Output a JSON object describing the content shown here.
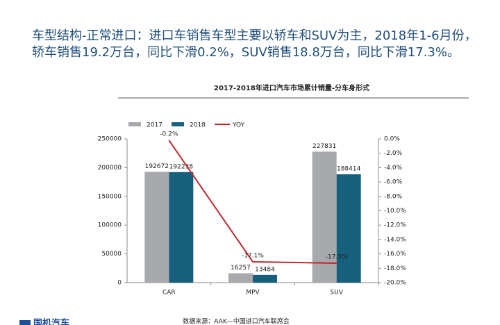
{
  "header": {
    "lines": [
      "车型结构-正常进口：进口车销售车型主要以轿车和SUV为主，2018年1-6月份，",
      "轿车销售19.2万台，同比下滑0.2%，SUV销售18.8万台，同比下滑17.3%。"
    ]
  },
  "chart_data": {
    "type": "bar",
    "title": "2017-2018年进口汽车市场累计销量-分车身形式",
    "categories": [
      "CAR",
      "MPV",
      "SUV"
    ],
    "series": [
      {
        "name": "2017",
        "color": "#a7a9ac",
        "values": [
          192672,
          16257,
          227831
        ]
      },
      {
        "name": "2018",
        "color": "#17607d",
        "values": [
          192238,
          13484,
          188414
        ]
      },
      {
        "name": "YOY",
        "color": "#c0272d",
        "type": "line",
        "axis": "y2",
        "values": [
          -0.2,
          -17.1,
          -17.3
        ],
        "value_labels": [
          "-0.2%",
          "-17.1%",
          "-17.3%"
        ]
      }
    ],
    "ylim": [
      0,
      250000
    ],
    "yticks": [
      0,
      50000,
      100000,
      150000,
      200000,
      250000
    ],
    "y2lim": [
      -20,
      0
    ],
    "y2ticks": [
      {
        "value": 0,
        "label": "0.0%"
      },
      {
        "value": -2,
        "label": "-2.0%"
      },
      {
        "value": -4,
        "label": "-4.0%"
      },
      {
        "value": -6,
        "label": "-6.0%"
      },
      {
        "value": -8,
        "label": "-8.0%"
      },
      {
        "value": -10,
        "label": "-10.0%"
      },
      {
        "value": -12,
        "label": "-12.0%"
      },
      {
        "value": -14,
        "label": "-14.0%"
      },
      {
        "value": -16,
        "label": "-16.0%"
      },
      {
        "value": -18,
        "label": "-18.0%"
      },
      {
        "value": -20,
        "label": "-20.0%"
      }
    ],
    "legend": "top"
  },
  "footer": {
    "source": "数据来源：AAK—中国进口汽车联席会",
    "logo": "国机汽车"
  }
}
